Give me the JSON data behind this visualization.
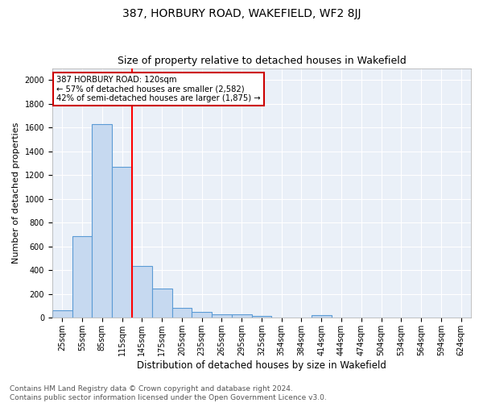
{
  "title1": "387, HORBURY ROAD, WAKEFIELD, WF2 8JJ",
  "title2": "Size of property relative to detached houses in Wakefield",
  "xlabel": "Distribution of detached houses by size in Wakefield",
  "ylabel": "Number of detached properties",
  "footnote1": "Contains HM Land Registry data © Crown copyright and database right 2024.",
  "footnote2": "Contains public sector information licensed under the Open Government Licence v3.0.",
  "bar_labels": [
    "25sqm",
    "55sqm",
    "85sqm",
    "115sqm",
    "145sqm",
    "175sqm",
    "205sqm",
    "235sqm",
    "265sqm",
    "295sqm",
    "325sqm",
    "354sqm",
    "384sqm",
    "414sqm",
    "444sqm",
    "474sqm",
    "504sqm",
    "534sqm",
    "564sqm",
    "594sqm",
    "624sqm"
  ],
  "bar_values": [
    65,
    690,
    1630,
    1270,
    435,
    247,
    83,
    50,
    33,
    27,
    17,
    0,
    0,
    20,
    0,
    0,
    0,
    0,
    0,
    0,
    0
  ],
  "bar_color": "#c6d9f0",
  "bar_edge_color": "#5b9bd5",
  "annotation_text": "387 HORBURY ROAD: 120sqm\n← 57% of detached houses are smaller (2,582)\n42% of semi-detached houses are larger (1,875) →",
  "annotation_box_color": "#ffffff",
  "annotation_box_edge_color": "#cc0000",
  "ylim": [
    0,
    2100
  ],
  "yticks": [
    0,
    200,
    400,
    600,
    800,
    1000,
    1200,
    1400,
    1600,
    1800,
    2000
  ],
  "bg_color": "#eaf0f8",
  "grid_color": "#ffffff",
  "title1_fontsize": 10,
  "title2_fontsize": 9,
  "xlabel_fontsize": 8.5,
  "ylabel_fontsize": 8,
  "tick_fontsize": 7,
  "footnote_fontsize": 6.5
}
